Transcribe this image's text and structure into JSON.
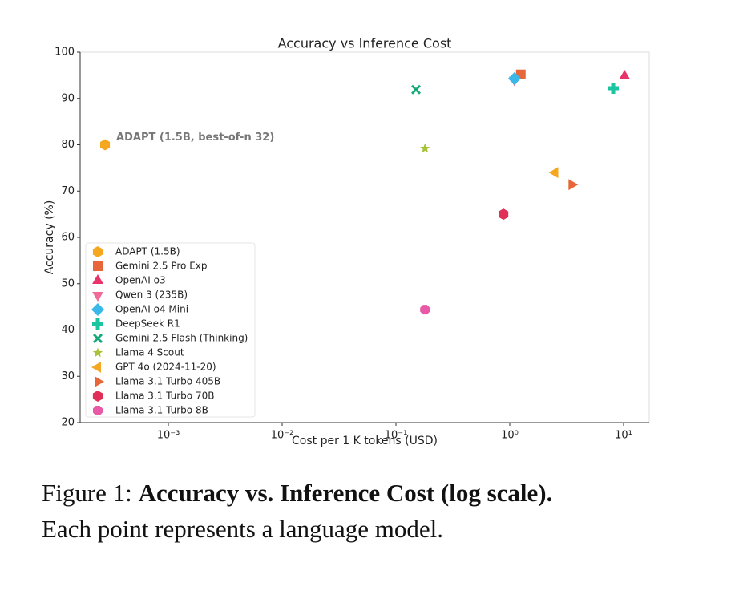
{
  "chart_data": {
    "type": "scatter",
    "title": "Accuracy vs Inference Cost",
    "xlabel": "Cost per 1 K tokens (USD)",
    "ylabel": "Accuracy (%)",
    "xscale": "log",
    "xlim": [
      0.000168,
      16.8
    ],
    "ylim": [
      20,
      100
    ],
    "xticks": [
      {
        "value": 0.001,
        "label": "10⁻³"
      },
      {
        "value": 0.01,
        "label": "10⁻²"
      },
      {
        "value": 0.1,
        "label": "10⁻¹"
      },
      {
        "value": 1,
        "label": "10⁰"
      },
      {
        "value": 10,
        "label": "10¹"
      }
    ],
    "yticks": [
      20,
      30,
      40,
      50,
      60,
      70,
      80,
      90,
      100
    ],
    "legend": "lower left",
    "annotation": {
      "text": "ADAPT (1.5B, best-of-n 32)",
      "series": 0
    },
    "series": [
      {
        "name": "ADAPT (1.5B)",
        "color": "#f5a81f",
        "marker": "hexagon",
        "x": [
          0.000278
        ],
        "values": [
          80
        ]
      },
      {
        "name": "Gemini 2.5 Pro Exp",
        "color": "#e8673a",
        "marker": "square",
        "x": [
          1.25
        ],
        "values": [
          95.2
        ]
      },
      {
        "name": "OpenAI o3",
        "color": "#e8336b",
        "marker": "triangle-up",
        "x": [
          10.2
        ],
        "values": [
          94.8
        ]
      },
      {
        "name": "Qwen 3 (235B)",
        "color": "#f06a9a",
        "marker": "triangle-down",
        "x": [
          1.1
        ],
        "values": [
          94
        ]
      },
      {
        "name": "OpenAI o4 Mini",
        "color": "#3ab8e8",
        "marker": "diamond",
        "x": [
          1.1
        ],
        "values": [
          94.3
        ]
      },
      {
        "name": "DeepSeek R1",
        "color": "#1cc4a0",
        "marker": "plus",
        "x": [
          8.1
        ],
        "values": [
          92.2
        ]
      },
      {
        "name": "Gemini 2.5 Flash (Thinking)",
        "color": "#12a87a",
        "marker": "x",
        "x": [
          0.15
        ],
        "values": [
          91.9
        ]
      },
      {
        "name": "Llama 4 Scout",
        "color": "#a8c23a",
        "marker": "star",
        "x": [
          0.18
        ],
        "values": [
          79.2
        ]
      },
      {
        "name": "GPT 4o (2024-11-20)",
        "color": "#f5a81f",
        "marker": "triangle-left",
        "x": [
          2.5
        ],
        "values": [
          74
        ]
      },
      {
        "name": "Llama 3.1 Turbo 405B",
        "color": "#e8673a",
        "marker": "triangle-right",
        "x": [
          3.5
        ],
        "values": [
          71.4
        ]
      },
      {
        "name": "Llama 3.1 Turbo 70B",
        "color": "#e0305a",
        "marker": "hexagon",
        "x": [
          0.88
        ],
        "values": [
          65
        ]
      },
      {
        "name": "Llama 3.1 Turbo 8B",
        "color": "#e85aa8",
        "marker": "octagon",
        "x": [
          0.18
        ],
        "values": [
          44.4
        ]
      }
    ]
  },
  "caption": {
    "label": "Figure 1:",
    "bold": "Accuracy vs. Inference Cost (log scale).",
    "text": "Each point represents a language model."
  }
}
